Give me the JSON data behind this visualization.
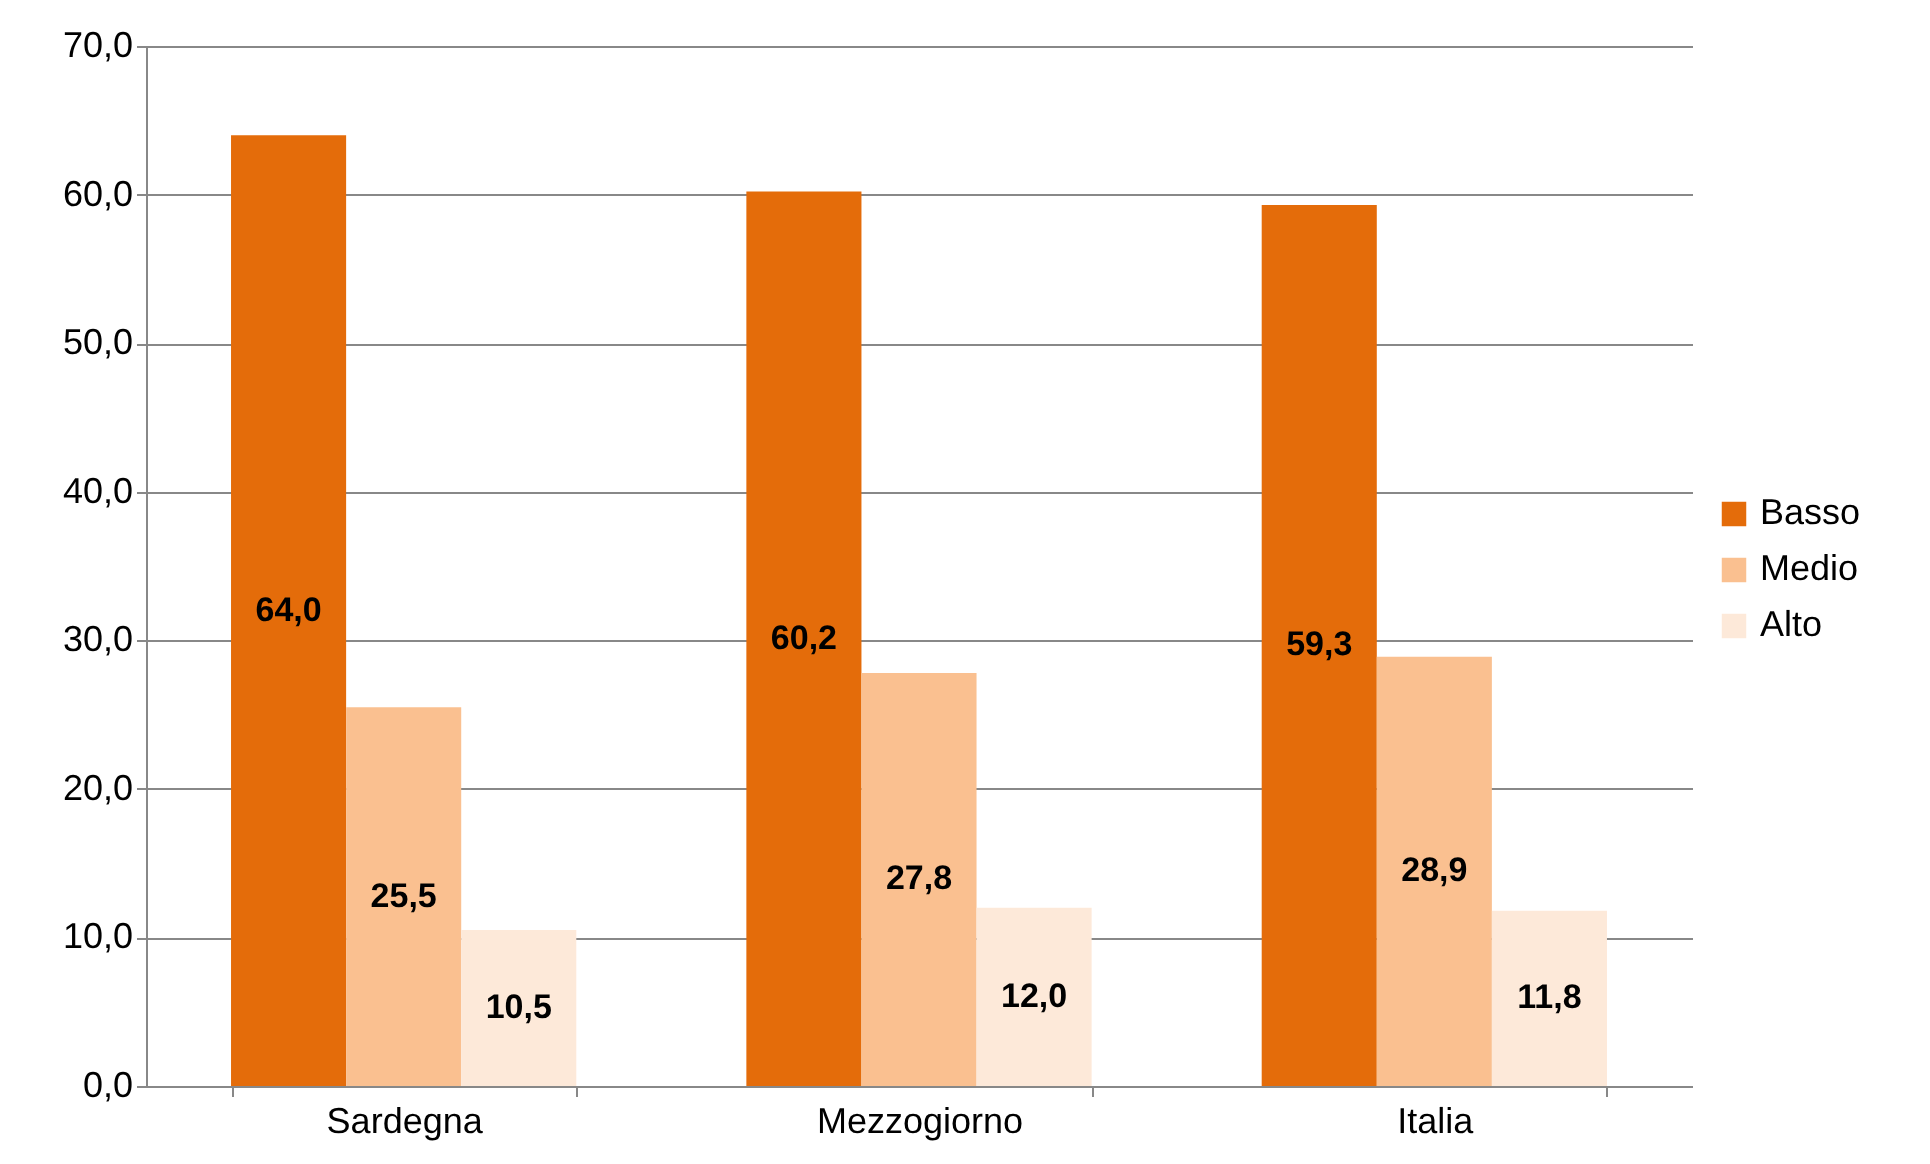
{
  "chart_data": {
    "type": "bar",
    "categories": [
      "Sardegna",
      "Mezzogiorno",
      "Italia"
    ],
    "series": [
      {
        "name": "Basso",
        "color": "#e46c0a",
        "values": [
          64.0,
          60.2,
          59.3
        ],
        "value_labels": [
          "64,0",
          "60,2",
          "59,3"
        ]
      },
      {
        "name": "Medio",
        "color": "#fac090",
        "values": [
          25.5,
          27.8,
          28.9
        ],
        "value_labels": [
          "25,5",
          "27,8",
          "28,9"
        ]
      },
      {
        "name": "Alto",
        "color": "#fde9d9",
        "values": [
          10.5,
          12.0,
          11.8
        ],
        "value_labels": [
          "10,5",
          "12,0",
          "11,8"
        ]
      }
    ],
    "ylim": [
      0,
      70
    ],
    "yticks": [
      {
        "value": 0,
        "label": "0,0"
      },
      {
        "value": 10,
        "label": "10,0"
      },
      {
        "value": 20,
        "label": "20,0"
      },
      {
        "value": 30,
        "label": "30,0"
      },
      {
        "value": 40,
        "label": "40,0"
      },
      {
        "value": 50,
        "label": "50,0"
      },
      {
        "value": 60,
        "label": "60,0"
      },
      {
        "value": 70,
        "label": "70,0"
      }
    ],
    "grid": "y",
    "legend": "right"
  }
}
